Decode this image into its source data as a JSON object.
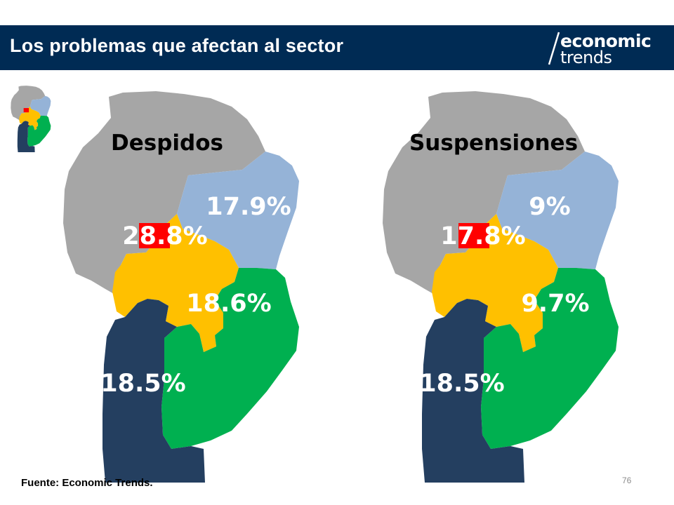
{
  "header": {
    "title": "Los problemas que afectan al sector",
    "logo_top": "economic",
    "logo_bottom": "trends"
  },
  "colors": {
    "header_bg": "#002b54",
    "norte": "#a6a6a6",
    "este": "#95b3d7",
    "centro": "#ffc000",
    "capital": "#ff0000",
    "sur_este": "#00b050",
    "sur_oeste": "#243f60",
    "label_light": "#ffffff",
    "label_dark": "#000000"
  },
  "maps": [
    {
      "heading": "Despidos",
      "regions": {
        "capital": "28.8%",
        "este": "17.9%",
        "centro": "18.6%",
        "sur_oeste": "18.5%"
      }
    },
    {
      "heading": "Suspensiones",
      "regions": {
        "capital": "17.8%",
        "este": "9%",
        "centro": "9.7%",
        "sur_oeste": "18.5%"
      }
    }
  ],
  "footer": {
    "source": "Fuente: Economic Trends.",
    "page_number": "76"
  }
}
